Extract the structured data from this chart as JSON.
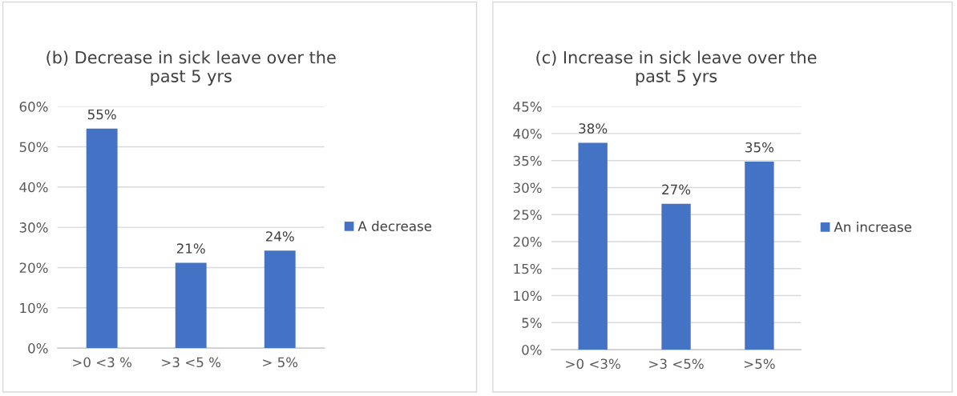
{
  "chart_data": [
    {
      "type": "bar",
      "title": "(b) Decrease in sick leave over the\npast 5 yrs",
      "categories": [
        ">0 <3 %",
        ">3 <5 %",
        "> 5%"
      ],
      "series": [
        {
          "name": "A decrease",
          "color": "#4472c4",
          "values": [
            54.5,
            21.2,
            24.2
          ],
          "value_labels": [
            "55%",
            "21%",
            "24%"
          ]
        }
      ],
      "ylim": [
        0,
        60
      ],
      "yticks": [
        {
          "value": 0,
          "label": "0%"
        },
        {
          "value": 10,
          "label": "10%"
        },
        {
          "value": 20,
          "label": "20%"
        },
        {
          "value": 30,
          "label": "30%"
        },
        {
          "value": 40,
          "label": "40%"
        },
        {
          "value": 50,
          "label": "50%"
        },
        {
          "value": 60,
          "label": "60%"
        }
      ],
      "grid": "y",
      "legend": "right"
    },
    {
      "type": "bar",
      "title": "(c) Increase in sick leave over the\npast 5 yrs",
      "categories": [
        ">0 <3%",
        ">3 <5%",
        ">5%"
      ],
      "series": [
        {
          "name": "An increase",
          "color": "#4472c4",
          "values": [
            38.3,
            27,
            34.8
          ],
          "value_labels": [
            "38%",
            "27%",
            "35%"
          ]
        }
      ],
      "ylim": [
        0,
        45
      ],
      "yticks": [
        {
          "value": 0,
          "label": "0%"
        },
        {
          "value": 5,
          "label": "5%"
        },
        {
          "value": 10,
          "label": "10%"
        },
        {
          "value": 15,
          "label": "15%"
        },
        {
          "value": 20,
          "label": "20%"
        },
        {
          "value": 25,
          "label": "25%"
        },
        {
          "value": 30,
          "label": "30%"
        },
        {
          "value": 35,
          "label": "35%"
        },
        {
          "value": 40,
          "label": "40%"
        },
        {
          "value": 45,
          "label": "45%"
        }
      ],
      "grid": "y",
      "legend": "right"
    }
  ]
}
